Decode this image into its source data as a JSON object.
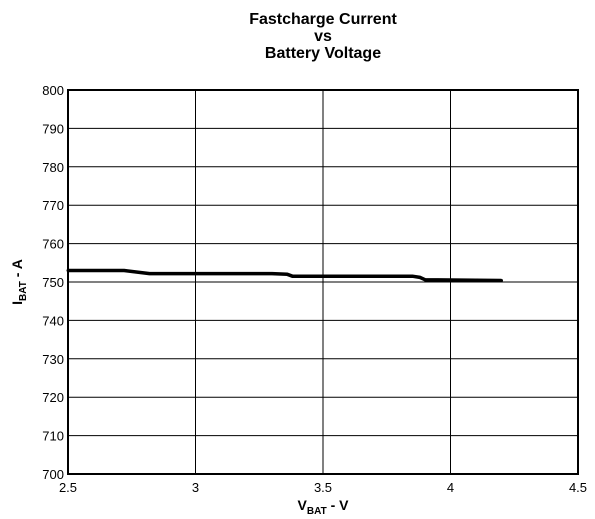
{
  "chart_data": {
    "type": "line",
    "title": [
      "Fastcharge Current",
      "vs",
      "Battery Voltage"
    ],
    "xlabel": {
      "main": "V",
      "sub": "BAT",
      "suffix": " - V"
    },
    "ylabel": {
      "main": "I",
      "sub": "BAT",
      "suffix": " - A"
    },
    "xlim": [
      2.5,
      4.5
    ],
    "ylim": [
      700,
      800
    ],
    "xticks": [
      "2.5",
      "3",
      "3.5",
      "4",
      "4.5"
    ],
    "yticks": [
      "700",
      "710",
      "720",
      "730",
      "740",
      "750",
      "760",
      "770",
      "780",
      "790",
      "800"
    ],
    "grid": true,
    "series": [
      {
        "color": "#000000",
        "x": [
          2.5,
          2.72,
          2.82,
          3.3,
          3.36,
          3.38,
          3.85,
          3.88,
          3.9,
          4.2
        ],
        "y": [
          753,
          753,
          752.2,
          752.2,
          752,
          751.5,
          751.5,
          751.2,
          750.6,
          750.4
        ]
      }
    ]
  }
}
